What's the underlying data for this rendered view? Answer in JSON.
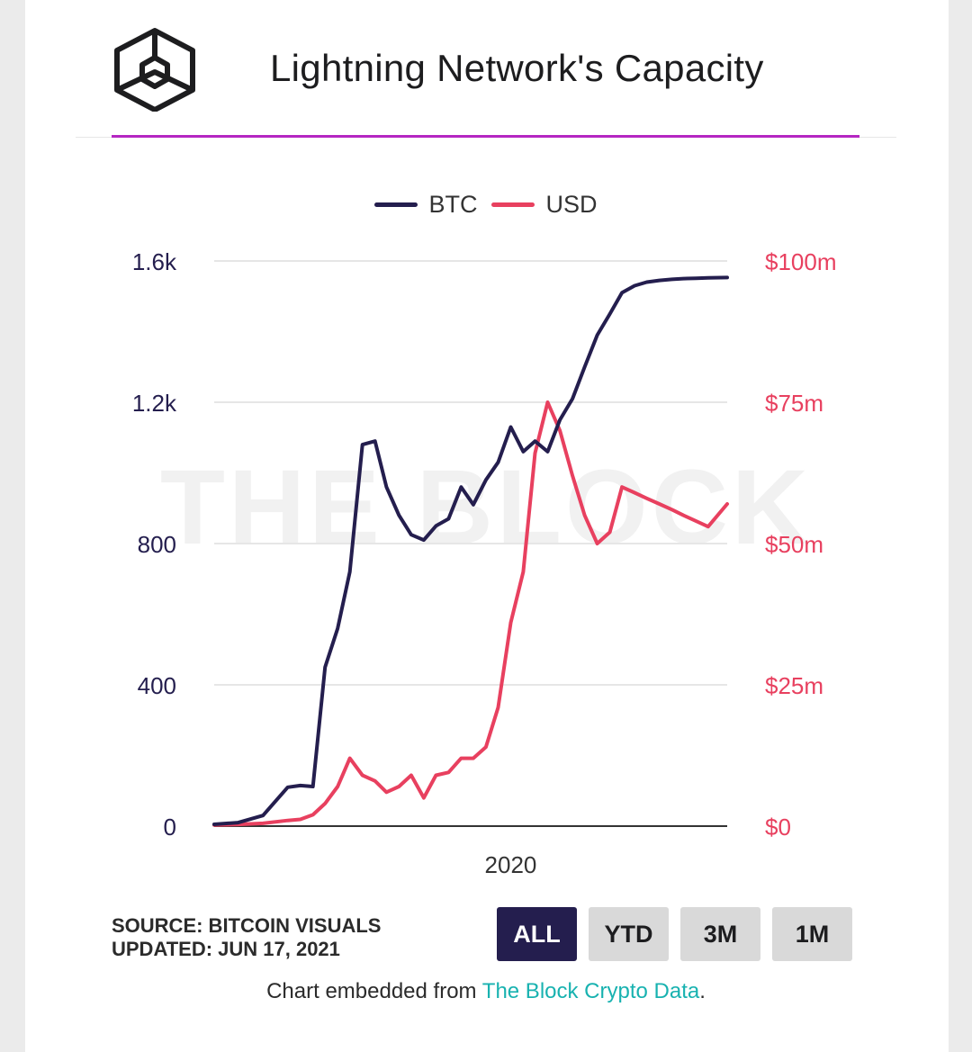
{
  "header": {
    "title": "Lightning Network's Capacity",
    "logo_icon": "the-block-cube-logo"
  },
  "watermark": "THE BLOCK",
  "legend": [
    {
      "label": "BTC",
      "color": "#241e4e"
    },
    {
      "label": "USD",
      "color": "#e8405f"
    }
  ],
  "chart_data": {
    "type": "line",
    "title": "Lightning Network's Capacity",
    "xlabel": "",
    "ylabel": "",
    "x_tick_labels": [
      "2020"
    ],
    "x_range": [
      "2018-01",
      "2021-06-17"
    ],
    "y_left": {
      "ticks": [
        "0",
        "400",
        "800",
        "1.2k",
        "1.6k"
      ],
      "range": [
        0,
        1600
      ]
    },
    "y_right": {
      "ticks": [
        "$0",
        "$25m",
        "$50m",
        "$75m",
        "$100m"
      ],
      "range": [
        0,
        100000000
      ]
    },
    "grid": true,
    "legend_position": "top-center",
    "series": [
      {
        "name": "BTC",
        "axis": "left",
        "color": "#241e4e",
        "x": [
          "2018-01",
          "2018-03",
          "2018-05",
          "2018-07",
          "2018-08",
          "2018-09",
          "2018-10",
          "2018-11",
          "2018-12",
          "2019-01",
          "2019-02",
          "2019-03",
          "2019-04",
          "2019-05",
          "2019-06",
          "2019-07",
          "2019-08",
          "2019-09",
          "2019-10",
          "2019-11",
          "2019-12",
          "2020-01",
          "2020-02",
          "2020-03",
          "2020-04",
          "2020-05",
          "2020-06",
          "2020-07",
          "2020-08",
          "2020-09",
          "2020-10",
          "2020-11",
          "2020-12",
          "2021-01",
          "2021-02",
          "2021-03",
          "2021-04",
          "2021-05",
          "2021-06-17"
        ],
        "y": [
          5,
          10,
          30,
          110,
          115,
          112,
          450,
          560,
          720,
          1080,
          1090,
          960,
          880,
          825,
          810,
          850,
          870,
          960,
          910,
          980,
          1030,
          1130,
          1060,
          1090,
          1060,
          1150,
          1210,
          1300,
          1390,
          1450,
          1510,
          1530,
          1540,
          1545,
          1548,
          1550,
          1551,
          1552,
          1553
        ]
      },
      {
        "name": "USD",
        "axis": "right",
        "color": "#e8405f",
        "x": [
          "2018-01",
          "2018-03",
          "2018-05",
          "2018-07",
          "2018-08",
          "2018-09",
          "2018-10",
          "2018-11",
          "2018-12",
          "2019-01",
          "2019-02",
          "2019-03",
          "2019-04",
          "2019-05",
          "2019-06",
          "2019-07",
          "2019-08",
          "2019-09",
          "2019-10",
          "2019-11",
          "2019-12",
          "2020-01",
          "2020-02",
          "2020-03",
          "2020-04",
          "2020-05",
          "2020-06",
          "2020-07",
          "2020-08",
          "2020-09",
          "2020-10",
          "2020-11",
          "2020-12",
          "2021-01",
          "2021-02",
          "2021-03",
          "2021-04",
          "2021-05",
          "2021-06-17"
        ],
        "y": [
          200000,
          300000,
          500000,
          1000000,
          1200000,
          2000000,
          4000000,
          7000000,
          12000000,
          9000000,
          8000000,
          6000000,
          7000000,
          9000000,
          5000000,
          9000000,
          9500000,
          12000000,
          12000000,
          14000000,
          21000000,
          36000000,
          45000000,
          66000000,
          75000000,
          70000000,
          62000000,
          55000000,
          50000000,
          52000000,
          60000000,
          59000000,
          58000000,
          57000000,
          56000000,
          55000000,
          54000000,
          53000000,
          57000000
        ]
      }
    ]
  },
  "footer": {
    "source_line": "SOURCE: BITCOIN VISUALS",
    "updated_line": "UPDATED: JUN 17, 2021",
    "range_buttons": [
      "ALL",
      "YTD",
      "3M",
      "1M"
    ],
    "active_range": "ALL",
    "embed_prefix": "Chart embedded from ",
    "embed_link": "The Block Crypto Data",
    "embed_suffix": "."
  }
}
